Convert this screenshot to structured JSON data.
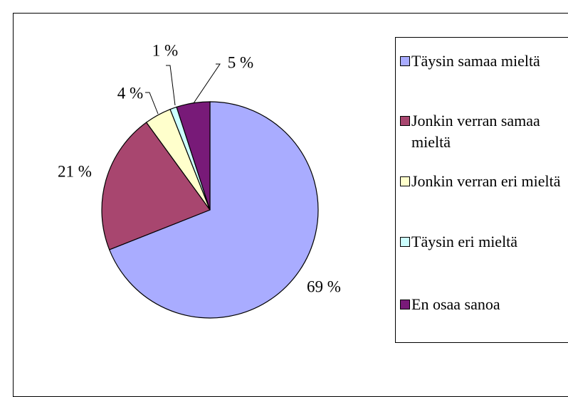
{
  "chart_data": {
    "type": "pie",
    "categories": [
      "Täysin samaa mieltä",
      "Jonkin verran samaa mieltä",
      "Jonkin verran eri mieltä",
      "Täysin eri mieltä",
      "En osaa sanoa"
    ],
    "values": [
      69,
      21,
      4,
      1,
      5
    ],
    "value_labels": [
      "69 %",
      "21 %",
      "4 %",
      "1 %",
      "5 %"
    ],
    "colors": [
      "#a9acff",
      "#a8466f",
      "#ffffcc",
      "#ccffff",
      "#781a78"
    ],
    "legend": "right"
  }
}
